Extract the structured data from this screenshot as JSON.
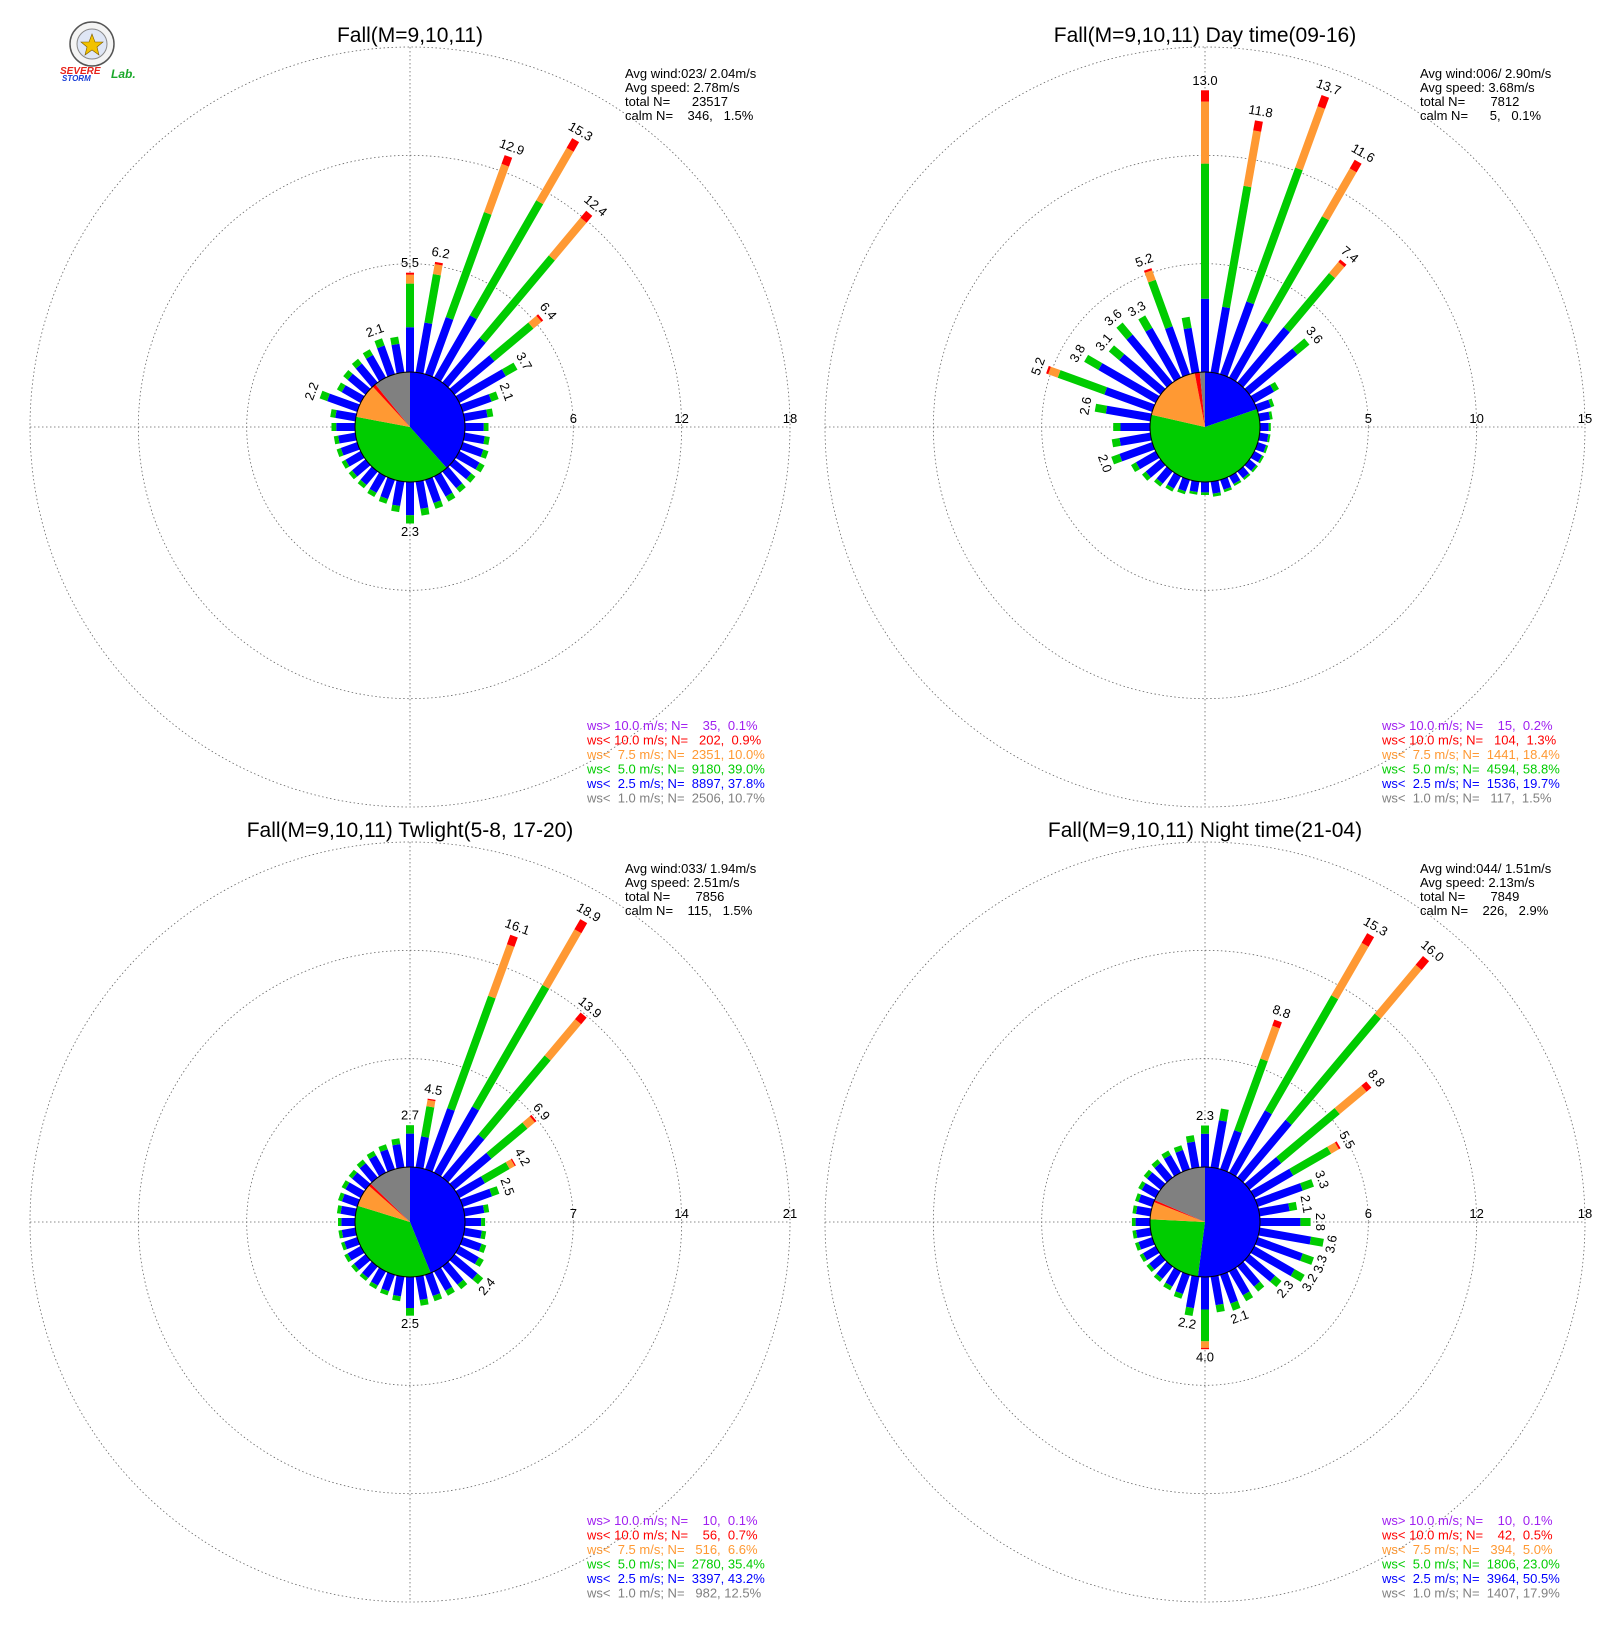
{
  "logo": {
    "line1": "SEVERE",
    "line2": "STORM",
    "line3": "Lab.",
    "colors": {
      "severe": "#e8221a",
      "storm": "#1a3fd6",
      "lab": "#1aa82a"
    }
  },
  "colors": {
    "ws_gt_10": "#a020f0",
    "ws_lt_10": "#ff0000",
    "ws_lt_7_5": "#ff9933",
    "ws_lt_5": "#00cc00",
    "ws_lt_2_5": "#0000ff",
    "ws_lt_1": "#808080",
    "pie_ws_lt_1_legend": "#808080"
  },
  "chart_data": [
    {
      "type": "windrose",
      "title": "Fall(M=9,10,11)",
      "stats": [
        "Avg wind:023/ 2.04m/s",
        "Avg speed: 2.78m/s",
        "total N=      23517",
        "calm N=    346,   1.5%"
      ],
      "ring_labels": [
        "6",
        "12",
        "18"
      ],
      "rmax": 18,
      "pie": [
        37.8,
        39.0,
        10.0,
        1.0,
        10.7
      ],
      "bars": [
        {
          "dir": 0,
          "total": 5.5,
          "label": "5.5"
        },
        {
          "dir": 10,
          "total": 6.2,
          "label": "6.2"
        },
        {
          "dir": 20,
          "total": 12.9,
          "label": "12.9"
        },
        {
          "dir": 30,
          "total": 15.3,
          "label": "15.3"
        },
        {
          "dir": 40,
          "total": 12.4,
          "label": "12.4"
        },
        {
          "dir": 50,
          "total": 6.4,
          "label": "6.4"
        },
        {
          "dir": 60,
          "total": 3.7,
          "label": "3.7"
        },
        {
          "dir": 70,
          "total": 2.1,
          "label": "2.1"
        },
        {
          "dir": 80,
          "total": 1.6
        },
        {
          "dir": 90,
          "total": 1.3
        },
        {
          "dir": 100,
          "total": 1.4
        },
        {
          "dir": 110,
          "total": 1.5
        },
        {
          "dir": 120,
          "total": 1.6
        },
        {
          "dir": 130,
          "total": 1.5
        },
        {
          "dir": 140,
          "total": 1.5
        },
        {
          "dir": 150,
          "total": 1.6
        },
        {
          "dir": 160,
          "total": 1.7
        },
        {
          "dir": 170,
          "total": 1.9
        },
        {
          "dir": 180,
          "total": 2.3,
          "label": "2.3"
        },
        {
          "dir": 190,
          "total": 1.7
        },
        {
          "dir": 200,
          "total": 1.4
        },
        {
          "dir": 210,
          "total": 1.3
        },
        {
          "dir": 220,
          "total": 1.2
        },
        {
          "dir": 230,
          "total": 1.2
        },
        {
          "dir": 240,
          "total": 1.2
        },
        {
          "dir": 250,
          "total": 1.2
        },
        {
          "dir": 260,
          "total": 1.2
        },
        {
          "dir": 270,
          "total": 1.3
        },
        {
          "dir": 280,
          "total": 1.4
        },
        {
          "dir": 290,
          "total": 2.2,
          "label": "2.2"
        },
        {
          "dir": 300,
          "total": 1.5
        },
        {
          "dir": 310,
          "total": 1.6
        },
        {
          "dir": 320,
          "total": 1.7
        },
        {
          "dir": 330,
          "total": 1.8
        },
        {
          "dir": 340,
          "total": 2.1,
          "label": "2.1"
        },
        {
          "dir": 350,
          "total": 2.0
        }
      ],
      "legend": [
        {
          "text": "ws> 10.0 m/s; N=    35,  0.1%",
          "color": "#a020f0"
        },
        {
          "text": "ws< 10.0 m/s; N=   202,  0.9%",
          "color": "#ff0000"
        },
        {
          "text": "ws<  7.5 m/s; N=  2351, 10.0%",
          "color": "#ff9933"
        },
        {
          "text": "ws<  5.0 m/s; N=  9180, 39.0%",
          "color": "#00cc00"
        },
        {
          "text": "ws<  2.5 m/s; N=  8897, 37.8%",
          "color": "#0000ff"
        },
        {
          "text": "ws<  1.0 m/s; N=  2506, 10.7%",
          "color": "#808080"
        }
      ]
    },
    {
      "type": "windrose",
      "title": "Fall(M=9,10,11) Day time(09-16)",
      "stats": [
        "Avg wind:006/ 2.90m/s",
        "Avg speed: 3.68m/s",
        "total N=       7812",
        "calm N=      5,   0.1%"
      ],
      "ring_labels": [
        "5",
        "10",
        "15"
      ],
      "rmax": 15,
      "pie": [
        19.7,
        58.8,
        18.4,
        1.5,
        1.5
      ],
      "bars": [
        {
          "dir": 0,
          "total": 13.0,
          "label": "13.0"
        },
        {
          "dir": 10,
          "total": 11.8,
          "label": "11.8"
        },
        {
          "dir": 20,
          "total": 13.7,
          "label": "13.7"
        },
        {
          "dir": 30,
          "total": 11.6,
          "label": "11.6"
        },
        {
          "dir": 40,
          "total": 7.4,
          "label": "7.4"
        },
        {
          "dir": 50,
          "total": 3.6,
          "label": "3.6"
        },
        {
          "dir": 60,
          "total": 1.3
        },
        {
          "dir": 70,
          "total": 0.8
        },
        {
          "dir": 80,
          "total": 0.6
        },
        {
          "dir": 90,
          "total": 0.5
        },
        {
          "dir": 100,
          "total": 0.5
        },
        {
          "dir": 110,
          "total": 0.5
        },
        {
          "dir": 120,
          "total": 0.5
        },
        {
          "dir": 130,
          "total": 0.5
        },
        {
          "dir": 140,
          "total": 0.5
        },
        {
          "dir": 150,
          "total": 0.5
        },
        {
          "dir": 160,
          "total": 0.6
        },
        {
          "dir": 170,
          "total": 0.7
        },
        {
          "dir": 180,
          "total": 0.6
        },
        {
          "dir": 190,
          "total": 0.6
        },
        {
          "dir": 200,
          "total": 0.7
        },
        {
          "dir": 210,
          "total": 0.8
        },
        {
          "dir": 220,
          "total": 0.9
        },
        {
          "dir": 230,
          "total": 1.1
        },
        {
          "dir": 240,
          "total": 1.3
        },
        {
          "dir": 250,
          "total": 2.0,
          "label": "2.0"
        },
        {
          "dir": 260,
          "total": 1.8
        },
        {
          "dir": 270,
          "total": 1.7
        },
        {
          "dir": 280,
          "total": 2.6,
          "label": "2.6"
        },
        {
          "dir": 290,
          "total": 5.2,
          "label": "5.2"
        },
        {
          "dir": 300,
          "total": 3.8,
          "label": "3.8"
        },
        {
          "dir": 310,
          "total": 3.1,
          "label": "3.1"
        },
        {
          "dir": 320,
          "total": 3.6,
          "label": "3.6"
        },
        {
          "dir": 330,
          "total": 3.3,
          "label": "3.3"
        },
        {
          "dir": 340,
          "total": 5.2,
          "label": "5.2"
        },
        {
          "dir": 350,
          "total": 2.6
        }
      ],
      "legend": [
        {
          "text": "ws> 10.0 m/s; N=    15,  0.2%",
          "color": "#a020f0"
        },
        {
          "text": "ws< 10.0 m/s; N=   104,  1.3%",
          "color": "#ff0000"
        },
        {
          "text": "ws<  7.5 m/s; N=  1441, 18.4%",
          "color": "#ff9933"
        },
        {
          "text": "ws<  5.0 m/s; N=  4594, 58.8%",
          "color": "#00cc00"
        },
        {
          "text": "ws<  2.5 m/s; N=  1536, 19.7%",
          "color": "#0000ff"
        },
        {
          "text": "ws<  1.0 m/s; N=   117,  1.5%",
          "color": "#808080"
        }
      ]
    },
    {
      "type": "windrose",
      "title": "Fall(M=9,10,11) Twlight(5-8, 17-20)",
      "stats": [
        "Avg wind:033/ 1.94m/s",
        "Avg speed: 2.51m/s",
        "total N=       7856",
        "calm N=    115,   1.5%"
      ],
      "ring_labels": [
        "7",
        "14",
        "21"
      ],
      "rmax": 21,
      "pie": [
        43.2,
        35.4,
        6.6,
        0.8,
        12.5
      ],
      "bars": [
        {
          "dir": 0,
          "total": 2.7,
          "label": "2.7"
        },
        {
          "dir": 10,
          "total": 4.5,
          "label": "4.5"
        },
        {
          "dir": 20,
          "total": 16.1,
          "label": "16.1"
        },
        {
          "dir": 30,
          "total": 18.9,
          "label": "18.9"
        },
        {
          "dir": 40,
          "total": 13.9,
          "label": "13.9"
        },
        {
          "dir": 50,
          "total": 6.9,
          "label": "6.9"
        },
        {
          "dir": 60,
          "total": 4.2,
          "label": "4.2"
        },
        {
          "dir": 70,
          "total": 2.5,
          "label": "2.5"
        },
        {
          "dir": 80,
          "total": 1.6
        },
        {
          "dir": 90,
          "total": 1.3
        },
        {
          "dir": 100,
          "total": 1.4
        },
        {
          "dir": 110,
          "total": 1.6
        },
        {
          "dir": 120,
          "total": 1.8
        },
        {
          "dir": 130,
          "total": 2.4,
          "label": "2.4"
        },
        {
          "dir": 140,
          "total": 1.9
        },
        {
          "dir": 150,
          "total": 1.8
        },
        {
          "dir": 160,
          "total": 1.8
        },
        {
          "dir": 170,
          "total": 1.9
        },
        {
          "dir": 180,
          "total": 2.5,
          "label": "2.5"
        },
        {
          "dir": 190,
          "total": 1.6
        },
        {
          "dir": 200,
          "total": 1.4
        },
        {
          "dir": 210,
          "total": 1.3
        },
        {
          "dir": 220,
          "total": 1.2
        },
        {
          "dir": 230,
          "total": 1.2
        },
        {
          "dir": 240,
          "total": 1.2
        },
        {
          "dir": 250,
          "total": 1.1
        },
        {
          "dir": 260,
          "total": 1.1
        },
        {
          "dir": 270,
          "total": 1.1
        },
        {
          "dir": 280,
          "total": 1.2
        },
        {
          "dir": 290,
          "total": 1.3
        },
        {
          "dir": 300,
          "total": 1.4
        },
        {
          "dir": 310,
          "total": 1.4
        },
        {
          "dir": 320,
          "total": 1.5
        },
        {
          "dir": 330,
          "total": 1.6
        },
        {
          "dir": 340,
          "total": 1.7
        },
        {
          "dir": 350,
          "total": 1.9
        }
      ],
      "legend": [
        {
          "text": "ws> 10.0 m/s; N=    10,  0.1%",
          "color": "#a020f0"
        },
        {
          "text": "ws< 10.0 m/s; N=    56,  0.7%",
          "color": "#ff0000"
        },
        {
          "text": "ws<  7.5 m/s; N=   516,  6.6%",
          "color": "#ff9933"
        },
        {
          "text": "ws<  5.0 m/s; N=  2780, 35.4%",
          "color": "#00cc00"
        },
        {
          "text": "ws<  2.5 m/s; N=  3397, 43.2%",
          "color": "#0000ff"
        },
        {
          "text": "ws<  1.0 m/s; N=   982, 12.5%",
          "color": "#808080"
        }
      ]
    },
    {
      "type": "windrose",
      "title": "Fall(M=9,10,11) Night time(21-04)",
      "stats": [
        "Avg wind:044/ 1.51m/s",
        "Avg speed: 2.13m/s",
        "total N=       7849",
        "calm N=    226,   2.9%"
      ],
      "ring_labels": [
        "6",
        "12",
        "18"
      ],
      "rmax": 18,
      "pie": [
        50.5,
        23.0,
        5.0,
        0.6,
        17.9
      ],
      "bars": [
        {
          "dir": 0,
          "total": 2.3,
          "label": "2.3"
        },
        {
          "dir": 10,
          "total": 3.3
        },
        {
          "dir": 20,
          "total": 8.8,
          "label": "8.8"
        },
        {
          "dir": 30,
          "total": 15.3,
          "label": "15.3"
        },
        {
          "dir": 40,
          "total": 16.0,
          "label": "16.0"
        },
        {
          "dir": 50,
          "total": 8.8,
          "label": "8.8"
        },
        {
          "dir": 60,
          "total": 5.5,
          "label": "5.5"
        },
        {
          "dir": 70,
          "total": 3.3,
          "label": "3.3"
        },
        {
          "dir": 80,
          "total": 2.1,
          "label": "2.1"
        },
        {
          "dir": 90,
          "total": 2.8,
          "label": "2.8"
        },
        {
          "dir": 100,
          "total": 3.6,
          "label": "3.6"
        },
        {
          "dir": 110,
          "total": 3.3,
          "label": "3.3"
        },
        {
          "dir": 120,
          "total": 3.2,
          "label": "3.2"
        },
        {
          "dir": 130,
          "total": 2.3,
          "label": "2.3"
        },
        {
          "dir": 140,
          "total": 1.8
        },
        {
          "dir": 150,
          "total": 1.9
        },
        {
          "dir": 160,
          "total": 2.1,
          "label": "2.1"
        },
        {
          "dir": 170,
          "total": 2.0
        },
        {
          "dir": 180,
          "total": 4.0,
          "label": "4.0"
        },
        {
          "dir": 190,
          "total": 2.2,
          "label": "2.2"
        },
        {
          "dir": 200,
          "total": 1.4
        },
        {
          "dir": 210,
          "total": 1.2
        },
        {
          "dir": 220,
          "total": 1.1
        },
        {
          "dir": 230,
          "total": 1.0
        },
        {
          "dir": 240,
          "total": 1.0
        },
        {
          "dir": 250,
          "total": 1.0
        },
        {
          "dir": 260,
          "total": 1.0
        },
        {
          "dir": 270,
          "total": 1.0
        },
        {
          "dir": 280,
          "total": 1.0
        },
        {
          "dir": 290,
          "total": 1.0
        },
        {
          "dir": 300,
          "total": 1.1
        },
        {
          "dir": 310,
          "total": 1.2
        },
        {
          "dir": 320,
          "total": 1.3
        },
        {
          "dir": 330,
          "total": 1.4
        },
        {
          "dir": 340,
          "total": 1.4
        },
        {
          "dir": 350,
          "total": 1.8
        }
      ],
      "legend": [
        {
          "text": "ws> 10.0 m/s; N=    10,  0.1%",
          "color": "#a020f0"
        },
        {
          "text": "ws< 10.0 m/s; N=    42,  0.5%",
          "color": "#ff0000"
        },
        {
          "text": "ws<  7.5 m/s; N=   394,  5.0%",
          "color": "#ff9933"
        },
        {
          "text": "ws<  5.0 m/s; N=  1806, 23.0%",
          "color": "#00cc00"
        },
        {
          "text": "ws<  2.5 m/s; N=  3964, 50.5%",
          "color": "#0000ff"
        },
        {
          "text": "ws<  1.0 m/s; N=  1407, 17.9%",
          "color": "#808080"
        }
      ]
    }
  ]
}
